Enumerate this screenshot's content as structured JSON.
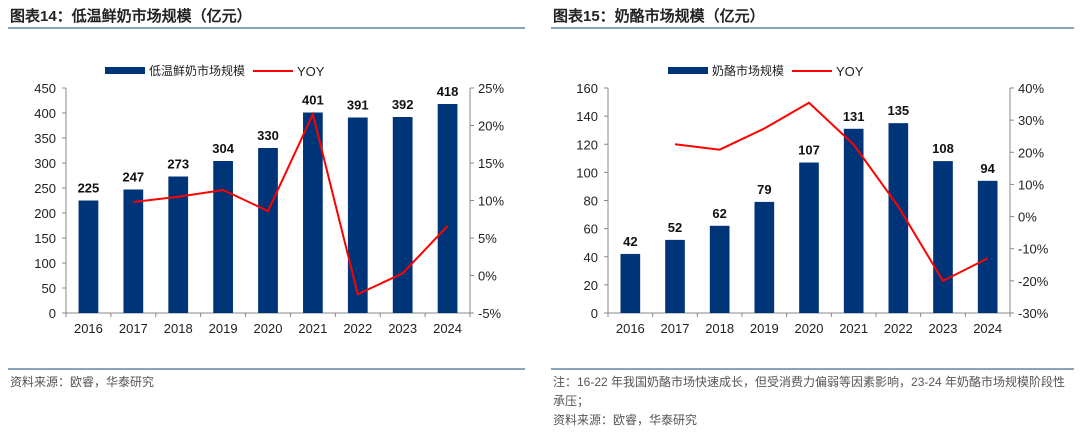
{
  "left": {
    "title": "图表14：低温鲜奶市场规模（亿元）",
    "source": "资料来源：欧睿，华泰研究"
  },
  "right": {
    "title": "图表15：奶酪市场规模（亿元）",
    "note": "注：16-22 年我国奶酪市场快速成长，但受消费力偏弱等因素影响，23-24 年奶酪市场规模阶段性承压；",
    "source": "资料来源：欧睿，华泰研究"
  },
  "colors": {
    "bar": "#003478",
    "line": "#ff0000"
  },
  "chart_data": [
    {
      "type": "bar+line",
      "categories": [
        "2016",
        "2017",
        "2018",
        "2019",
        "2020",
        "2021",
        "2022",
        "2023",
        "2024"
      ],
      "series": [
        {
          "name": "低温鲜奶市场规模",
          "type": "bar",
          "axis": "left",
          "values": [
            225,
            247,
            273,
            304,
            330,
            401,
            391,
            392,
            418
          ]
        },
        {
          "name": "YOY",
          "type": "line",
          "axis": "right",
          "values": [
            null,
            9.8,
            10.5,
            11.4,
            8.6,
            21.5,
            -2.5,
            0.3,
            6.6
          ]
        }
      ],
      "ylim": [
        0,
        450
      ],
      "yticks": [
        0,
        50,
        100,
        150,
        200,
        250,
        300,
        350,
        400,
        450
      ],
      "y2lim": [
        -5,
        25
      ],
      "y2ticks": [
        -5,
        0,
        5,
        10,
        15,
        20,
        25
      ],
      "legend": "top",
      "grid": false
    },
    {
      "type": "bar+line",
      "categories": [
        "2016",
        "2017",
        "2018",
        "2019",
        "2020",
        "2021",
        "2022",
        "2023",
        "2024"
      ],
      "series": [
        {
          "name": "奶酪市场规模",
          "type": "bar",
          "axis": "left",
          "values": [
            42,
            52,
            62,
            79,
            107,
            131,
            135,
            108,
            94
          ]
        },
        {
          "name": "YOY",
          "type": "line",
          "axis": "right",
          "values": [
            null,
            22.5,
            20.8,
            27.4,
            35.4,
            22.4,
            3.1,
            -20.0,
            -13.0
          ]
        }
      ],
      "ylim": [
        0,
        160
      ],
      "yticks": [
        0,
        20,
        40,
        60,
        80,
        100,
        120,
        140,
        160
      ],
      "y2lim": [
        -30,
        40
      ],
      "y2ticks": [
        -30,
        -20,
        -10,
        0,
        10,
        20,
        30,
        40
      ],
      "legend": "top",
      "grid": false
    }
  ]
}
